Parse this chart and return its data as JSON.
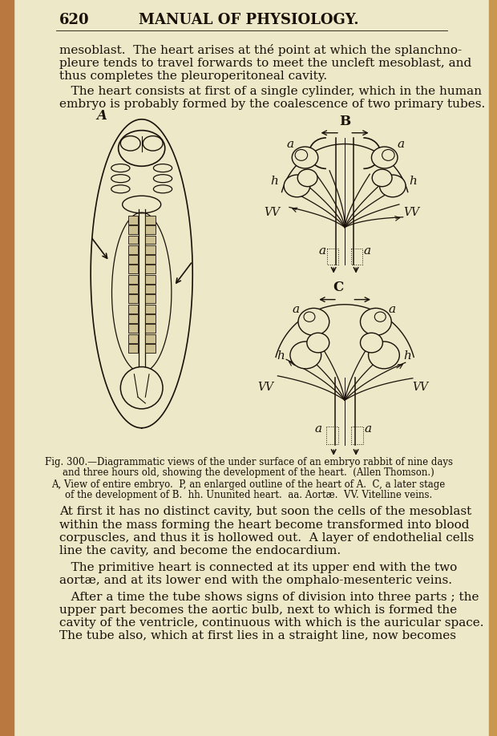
{
  "page_number": "620",
  "header": "MANUAL OF PHYSIOLOGY.",
  "bg_color": "#f0e8c0",
  "page_bg": "#ede8c8",
  "left_strip_color": "#b87840",
  "right_strip_color": "#c89850",
  "text_color": "#1a1008",
  "dark_color": "#2a1a08",
  "caption1_line1": "Fig. 300.—Diagrammatic views of the under surface of an embryo rabbit of nine days",
  "caption1_line2": "and three hours old, showing the development of the heart.  (Allen Thomson.)",
  "caption2_line1": "A, View of entire embryo.  P, an enlarged outline of the heart of A.  C, a later stage",
  "caption2_line2": "of the development of B.  hh. Ununited heart.  aa. Aortæ.  VV. Vitelline veins.",
  "para1_lines": [
    "mesoblast.  The heart arises at thé point at which the splanchno-",
    "pleure tends to travel forwards to meet the uncleft mesoblast, and",
    "thus completes the pleuroperitoneal cavity."
  ],
  "para2_lines": [
    "   The heart consists at first of a single cylinder, which in the human",
    "embryo is probably formed by the coalescence of two primary tubes."
  ],
  "para3_lines": [
    "At first it has no distinct cavity, but soon the cells of the mesoblast",
    "within the mass forming the heart become transformed into blood",
    "corpuscles, and thus it is hollowed out.  A layer of endothelial cells",
    "line the cavity, and become the endocardium."
  ],
  "para4_lines": [
    "   The primitive heart is connected at its upper end with the two",
    "aortæ, and at its lower end with the omphalo-mesenteric veins."
  ],
  "para5_lines": [
    "   After a time the tube shows signs of division into three parts ; the",
    "upper part becomes the aortic bulb, next to which is formed the",
    "cavity of the ventricle, continuous with which is the auricular space.",
    "The tube also, which at first lies in a straight line, now becomes"
  ]
}
